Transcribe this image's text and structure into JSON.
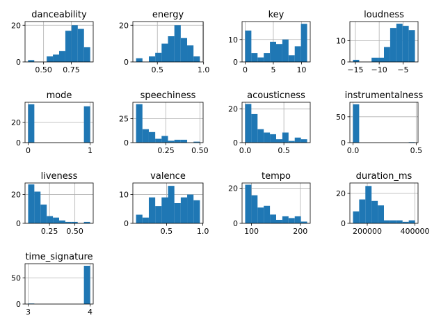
{
  "figure": {
    "background": "#ffffff"
  },
  "style": {
    "bar_color": "#1f77b4",
    "grid_color": "#b0b0b0",
    "axis_color": "#000000"
  },
  "chart_data": [
    {
      "type": "bar",
      "title": "danceability",
      "grid": true,
      "bins": 10,
      "edges": [
        0.36,
        0.416,
        0.472,
        0.528,
        0.584,
        0.64,
        0.696,
        0.752,
        0.808,
        0.864,
        0.92
      ],
      "values": [
        1,
        0,
        0,
        3,
        4,
        6,
        17,
        20,
        18,
        8
      ],
      "xlim": [
        0.333,
        0.947
      ],
      "ylim": [
        0,
        22
      ],
      "xticks": [
        0.5,
        0.75
      ],
      "xtick_labels": [
        "0.50",
        "0.75"
      ],
      "yticks": [
        0,
        20
      ],
      "ytick_labels": [
        "0",
        "20"
      ]
    },
    {
      "type": "bar",
      "title": "energy",
      "grid": true,
      "bins": 10,
      "edges": [
        0.27,
        0.339,
        0.408,
        0.477,
        0.546,
        0.615,
        0.684,
        0.753,
        0.822,
        0.891,
        0.96
      ],
      "values": [
        2,
        0,
        3,
        5,
        10,
        14,
        20,
        13,
        9,
        3
      ],
      "xlim": [
        0.235,
        0.995
      ],
      "ylim": [
        0,
        22
      ],
      "xticks": [
        0.5,
        1.0
      ],
      "xtick_labels": [
        "0.5",
        "1.0"
      ],
      "yticks": [
        0,
        20
      ],
      "ytick_labels": [
        "0",
        "20"
      ]
    },
    {
      "type": "bar",
      "title": "key",
      "grid": true,
      "bins": 10,
      "edges": [
        0,
        1.1,
        2.2,
        3.3,
        4.4,
        5.5,
        6.6,
        7.7,
        8.8,
        9.9,
        11
      ],
      "values": [
        14,
        4,
        2,
        4,
        9,
        8,
        10,
        3,
        7,
        17
      ],
      "xlim": [
        -0.55,
        11.55
      ],
      "ylim": [
        0,
        18
      ],
      "xticks": [
        0,
        5,
        10
      ],
      "xtick_labels": [
        "0",
        "5",
        "10"
      ],
      "yticks": [
        0,
        10
      ],
      "ytick_labels": [
        "0",
        "10"
      ]
    },
    {
      "type": "bar",
      "title": "loudness",
      "grid": true,
      "bins": 10,
      "edges": [
        -15.5,
        -14.2,
        -12.9,
        -11.6,
        -10.3,
        -9.0,
        -7.7,
        -6.4,
        -5.1,
        -3.8,
        -2.5
      ],
      "values": [
        1,
        0,
        0,
        2,
        2,
        7,
        16,
        18,
        17,
        15
      ],
      "xlim": [
        -16.15,
        -1.85
      ],
      "ylim": [
        0,
        19
      ],
      "xticks": [
        -15,
        -10,
        -5
      ],
      "xtick_labels": [
        "−15",
        "−10",
        "−5"
      ],
      "yticks": [
        0,
        10
      ],
      "ytick_labels": [
        "0",
        "10"
      ]
    },
    {
      "type": "bar",
      "title": "mode",
      "grid": true,
      "bins": 10,
      "edges": [
        0,
        0.1,
        0.2,
        0.3,
        0.4,
        0.5,
        0.6,
        0.7,
        0.8,
        0.9,
        1.0
      ],
      "values": [
        38,
        0,
        0,
        0,
        0,
        0,
        0,
        0,
        0,
        36
      ],
      "xlim": [
        -0.05,
        1.05
      ],
      "ylim": [
        0,
        40
      ],
      "xticks": [
        0,
        1
      ],
      "xtick_labels": [
        "0",
        "1"
      ],
      "yticks": [
        0,
        20
      ],
      "ytick_labels": [
        "0",
        "20"
      ]
    },
    {
      "type": "bar",
      "title": "speechiness",
      "grid": true,
      "bins": 10,
      "edges": [
        0.03,
        0.077,
        0.124,
        0.171,
        0.218,
        0.265,
        0.312,
        0.359,
        0.406,
        0.453,
        0.5
      ],
      "values": [
        40,
        14,
        11,
        4,
        7,
        2,
        3,
        3,
        0,
        1
      ],
      "xlim": [
        0.0065,
        0.5235
      ],
      "ylim": [
        0,
        42
      ],
      "xticks": [
        0.25,
        0.5
      ],
      "xtick_labels": [
        "0.25",
        "0.50"
      ],
      "yticks": [
        0,
        25
      ],
      "ytick_labels": [
        "0",
        "25"
      ]
    },
    {
      "type": "bar",
      "title": "acousticness",
      "grid": true,
      "bins": 10,
      "edges": [
        0.0,
        0.08,
        0.16,
        0.24,
        0.32,
        0.4,
        0.48,
        0.56,
        0.64,
        0.72,
        0.8
      ],
      "values": [
        23,
        17,
        8,
        6,
        5,
        2,
        6,
        1,
        3,
        2
      ],
      "xlim": [
        -0.04,
        0.84
      ],
      "ylim": [
        0,
        24
      ],
      "xticks": [
        0.0,
        0.5
      ],
      "xtick_labels": [
        "0.0",
        "0.5"
      ],
      "yticks": [
        0,
        20
      ],
      "ytick_labels": [
        "0",
        "20"
      ]
    },
    {
      "type": "bar",
      "title": "instrumentalness",
      "grid": true,
      "bins": 10,
      "edges": [
        0.0,
        0.049,
        0.098,
        0.147,
        0.196,
        0.245,
        0.294,
        0.343,
        0.392,
        0.441,
        0.49
      ],
      "values": [
        74,
        0,
        0,
        0,
        0,
        0,
        0,
        0,
        0,
        1
      ],
      "xlim": [
        -0.0245,
        0.5145
      ],
      "ylim": [
        0,
        78
      ],
      "xticks": [
        0.0,
        0.5
      ],
      "xtick_labels": [
        "0.0",
        "0.5"
      ],
      "yticks": [
        0,
        50
      ],
      "ytick_labels": [
        "0",
        "50"
      ]
    },
    {
      "type": "bar",
      "title": "liveness",
      "grid": true,
      "bins": 10,
      "edges": [
        0.04,
        0.101,
        0.162,
        0.223,
        0.284,
        0.345,
        0.406,
        0.467,
        0.528,
        0.589,
        0.65
      ],
      "values": [
        27,
        22,
        13,
        5,
        4,
        2,
        1,
        1,
        0,
        1
      ],
      "xlim": [
        0.0095,
        0.6805
      ],
      "ylim": [
        0,
        28
      ],
      "xticks": [
        0.25,
        0.5
      ],
      "xtick_labels": [
        "0.25",
        "0.50"
      ],
      "yticks": [
        0,
        20
      ],
      "ytick_labels": [
        "0",
        "20"
      ]
    },
    {
      "type": "bar",
      "title": "valence",
      "grid": true,
      "bins": 10,
      "edges": [
        0.08,
        0.168,
        0.256,
        0.344,
        0.432,
        0.52,
        0.608,
        0.696,
        0.784,
        0.872,
        0.96
      ],
      "values": [
        3,
        2,
        9,
        6,
        9,
        13,
        7,
        9,
        10,
        8
      ],
      "xlim": [
        0.036,
        1.004
      ],
      "ylim": [
        0,
        14
      ],
      "xticks": [
        0.5,
        1.0
      ],
      "xtick_labels": [
        "0.5",
        "1.0"
      ],
      "yticks": [
        0,
        10
      ],
      "ytick_labels": [
        "0",
        "10"
      ]
    },
    {
      "type": "bar",
      "title": "tempo",
      "grid": true,
      "bins": 10,
      "edges": [
        87,
        99.7,
        112.4,
        125.1,
        137.8,
        150.5,
        163.2,
        175.9,
        188.6,
        201.3,
        214
      ],
      "values": [
        22,
        16,
        9,
        10,
        5,
        2,
        4,
        3,
        4,
        1
      ],
      "xlim": [
        80.65,
        220.35
      ],
      "ylim": [
        0,
        23
      ],
      "xticks": [
        100,
        200
      ],
      "xtick_labels": [
        "100",
        "200"
      ],
      "yticks": [
        0,
        20
      ],
      "ytick_labels": [
        "0",
        "20"
      ]
    },
    {
      "type": "bar",
      "title": "duration_ms",
      "grid": true,
      "bins": 10,
      "edges": [
        140000,
        166000,
        192000,
        218000,
        244000,
        270000,
        296000,
        322000,
        348000,
        374000,
        400000
      ],
      "values": [
        8,
        16,
        25,
        15,
        12,
        2,
        2,
        2,
        1,
        2
      ],
      "xlim": [
        127000,
        413000
      ],
      "ylim": [
        0,
        27
      ],
      "xticks": [
        200000,
        400000
      ],
      "xtick_labels": [
        "200000",
        "400000"
      ],
      "yticks": [
        0,
        20
      ],
      "ytick_labels": [
        "0",
        "20"
      ]
    },
    {
      "type": "bar",
      "title": "time_signature",
      "grid": true,
      "bins": 10,
      "edges": [
        3,
        3.1,
        3.2,
        3.3,
        3.4,
        3.5,
        3.6,
        3.7,
        3.8,
        3.9,
        4.0
      ],
      "values": [
        1,
        0,
        0,
        0,
        0,
        0,
        0,
        0,
        0,
        73
      ],
      "xlim": [
        2.95,
        4.05
      ],
      "ylim": [
        0,
        77
      ],
      "xticks": [
        3,
        4
      ],
      "xtick_labels": [
        "3",
        "4"
      ],
      "yticks": [
        0,
        50
      ],
      "ytick_labels": [
        "0",
        "50"
      ]
    }
  ]
}
